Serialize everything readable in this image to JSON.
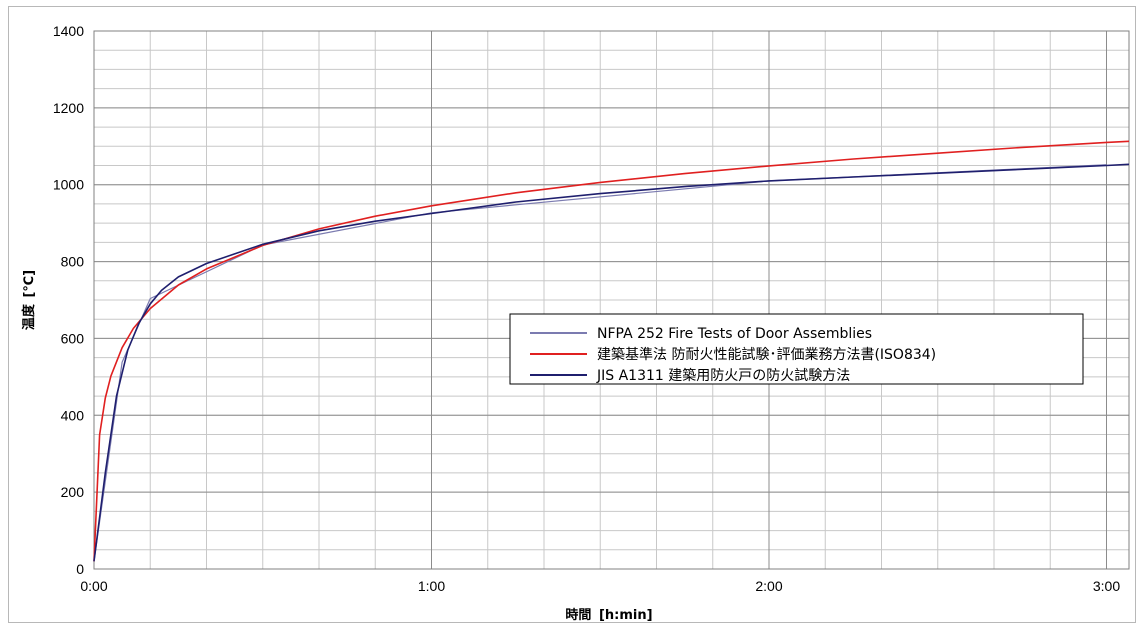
{
  "chart_data": {
    "type": "line",
    "xlabel": "時間",
    "xlabel_unit": "[h:min]",
    "ylabel": "温度",
    "ylabel_unit": "[℃]",
    "ylim": [
      0,
      1400
    ],
    "xlim_minutes": [
      0,
      184
    ],
    "y_ticks": [
      "0",
      "200",
      "400",
      "600",
      "800",
      "1000",
      "1200",
      "1400"
    ],
    "x_ticks": [
      {
        "label": "0:00",
        "minutes": 0
      },
      {
        "label": "1:00",
        "minutes": 60
      },
      {
        "label": "2:00",
        "minutes": 120
      },
      {
        "label": "3:00",
        "minutes": 180
      }
    ],
    "grid": true,
    "legend_placement": "center-right",
    "series": [
      {
        "name": "NFPA 252 Fire Tests of Door Assemblies",
        "color": "#7b7bb0",
        "x": [
          0,
          5,
          10,
          30,
          60,
          120,
          180
        ],
        "y": [
          20,
          538,
          704,
          843,
          927,
          1010,
          1052
        ]
      },
      {
        "name": "建築基準法  防耐火性能試験･評価業務方法書(ISO834)",
        "color": "#e02020",
        "x": [
          0,
          1,
          2,
          3,
          5,
          7,
          10,
          15,
          20,
          30,
          40,
          50,
          60,
          75,
          90,
          105,
          120,
          135,
          150,
          165,
          180,
          184
        ],
        "y": [
          20,
          349,
          445,
          502,
          576,
          626,
          678,
          739,
          781,
          842,
          885,
          918,
          945,
          979,
          1006,
          1029,
          1049,
          1067,
          1082,
          1097,
          1110,
          1113
        ]
      },
      {
        "name": "JIS A1311 建築用防火戸の防火試験方法",
        "color": "#1f1f6e",
        "x": [
          0,
          2,
          4,
          6,
          8,
          10,
          12,
          15,
          20,
          25,
          30,
          40,
          50,
          60,
          75,
          90,
          105,
          120,
          135,
          150,
          165,
          180,
          184
        ],
        "y": [
          20,
          250,
          450,
          570,
          640,
          690,
          725,
          760,
          795,
          820,
          845,
          880,
          905,
          925,
          955,
          977,
          995,
          1010,
          1020,
          1030,
          1040,
          1050,
          1053
        ]
      }
    ]
  }
}
